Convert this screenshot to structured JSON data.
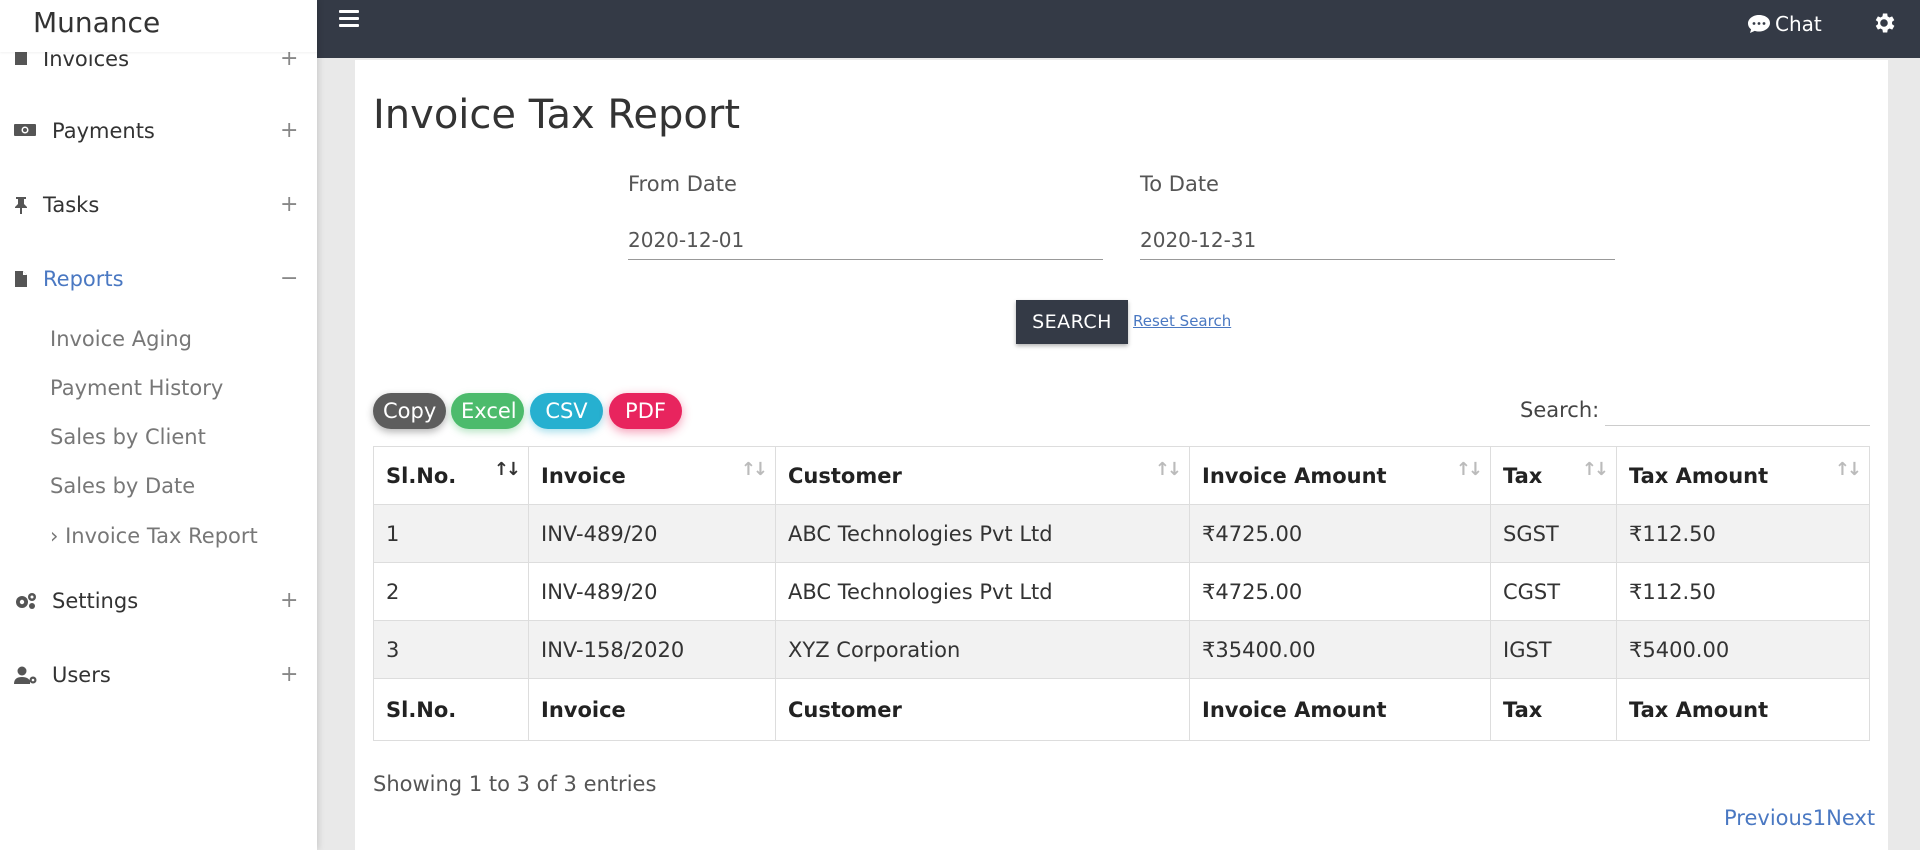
{
  "app": {
    "brand": "Munance"
  },
  "sidebar": {
    "items": [
      {
        "label": "Invoices",
        "toggle": "+",
        "icon": "invoice-icon"
      },
      {
        "label": "Payments",
        "toggle": "+",
        "icon": "money-icon"
      },
      {
        "label": "Tasks",
        "toggle": "+",
        "icon": "pin-icon"
      },
      {
        "label": "Reports",
        "toggle": "−",
        "icon": "file-icon",
        "active": true
      },
      {
        "label": "Settings",
        "toggle": "+",
        "icon": "gears-icon"
      },
      {
        "label": "Users",
        "toggle": "+",
        "icon": "user-gear-icon"
      }
    ],
    "reports_sub": [
      {
        "label": "Invoice Aging"
      },
      {
        "label": "Payment History"
      },
      {
        "label": "Sales by Client"
      },
      {
        "label": "Sales by Date"
      },
      {
        "label": "› Invoice Tax Report"
      }
    ]
  },
  "topbar": {
    "chat_label": "Chat"
  },
  "page": {
    "title": "Invoice Tax Report",
    "from_label": "From Date",
    "from_value": "2020-12-01",
    "to_label": "To Date",
    "to_value": "2020-12-31",
    "search_button": "SEARCH",
    "reset_link": "Reset Search"
  },
  "export": {
    "copy": "Copy",
    "excel": "Excel",
    "csv": "CSV",
    "pdf": "PDF"
  },
  "table_search_label": "Search:",
  "table": {
    "columns": [
      "Sl.No.",
      "Invoice",
      "Customer",
      "Invoice Amount",
      "Tax",
      "Tax Amount"
    ],
    "rows": [
      [
        "1",
        "INV-489/20",
        "ABC Technologies Pvt Ltd",
        "₹4725.00",
        "SGST",
        "₹112.50"
      ],
      [
        "2",
        "INV-489/20",
        "ABC Technologies Pvt Ltd",
        "₹4725.00",
        "CGST",
        "₹112.50"
      ],
      [
        "3",
        "INV-158/2020",
        "XYZ Corporation",
        "₹35400.00",
        "IGST",
        "₹5400.00"
      ]
    ]
  },
  "info": "Showing 1 to 3 of 3 entries",
  "pagination": {
    "previous": "Previous",
    "page": "1",
    "next": "Next"
  },
  "colors": {
    "topbar": "#343a46",
    "accent": "#4a78c2",
    "excel": "#4cbb6c",
    "csv": "#26b0d0",
    "pdf": "#e8245e",
    "copy": "#5d5d5d"
  }
}
